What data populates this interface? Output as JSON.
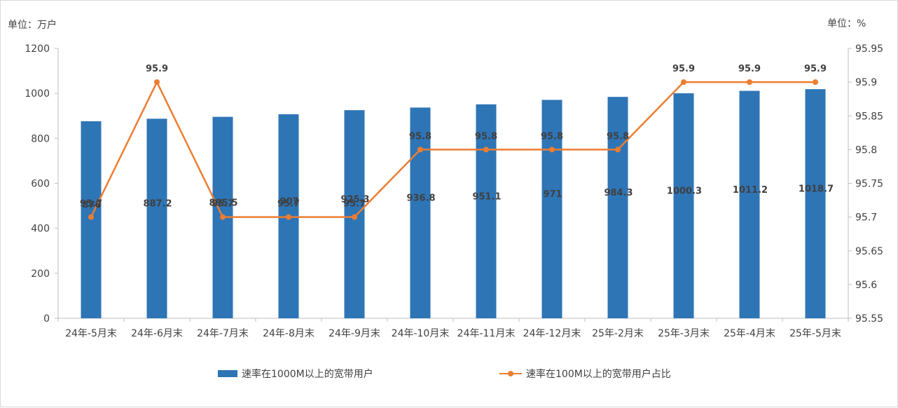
{
  "unit_left": "单位：万户",
  "unit_right": "单位：%",
  "colors": {
    "bar": "#2E75B6",
    "line": "#ED7D31",
    "axis": "#bfbfbf",
    "text": "#404040",
    "label": "#404040"
  },
  "chart_data": {
    "type": "bar+line",
    "categories": [
      "24年-5月末",
      "24年-6月末",
      "24年-7月末",
      "24年-8月末",
      "24年-9月末",
      "24年-10月末",
      "24年-11月末",
      "24年-12月末",
      "25年-2月末",
      "25年-3月末",
      "25年-4月末",
      "25年-5月末"
    ],
    "y_left": {
      "min": 0,
      "max": 1200,
      "step": 200,
      "ticks": [
        "0",
        "200",
        "400",
        "600",
        "800",
        "1000",
        "1200"
      ]
    },
    "y_right": {
      "min": 95.55,
      "max": 95.95,
      "step": 0.05,
      "ticks": [
        "95.55",
        "95.6",
        "95.65",
        "95.7",
        "95.75",
        "95.8",
        "95.85",
        "95.9",
        "95.95"
      ]
    },
    "series": [
      {
        "name": "速率在1000M以上的宽带用户",
        "kind": "bar",
        "axis": "left",
        "values": [
          876,
          887.2,
          895.5,
          907,
          925.3,
          936.8,
          951.1,
          971,
          984.3,
          1000.3,
          1011.2,
          1018.7
        ],
        "labels": [
          "876",
          "887.2",
          "895.5",
          "907",
          "925.3",
          "936.8",
          "951.1",
          "971",
          "984.3",
          "1000.3",
          "1011.2",
          "1018.7"
        ]
      },
      {
        "name": "速率在100M以上的宽带用户占比",
        "kind": "line",
        "axis": "right",
        "values": [
          95.7,
          95.9,
          95.7,
          95.7,
          95.7,
          95.8,
          95.8,
          95.8,
          95.8,
          95.9,
          95.9,
          95.9
        ],
        "labels": [
          "95.7",
          "95.9",
          "95.7",
          "95.7",
          "95.7",
          "95.8",
          "95.8",
          "95.8",
          "95.8",
          "95.9",
          "95.9",
          "95.9"
        ]
      }
    ],
    "legend_position": "bottom",
    "grid": false
  }
}
